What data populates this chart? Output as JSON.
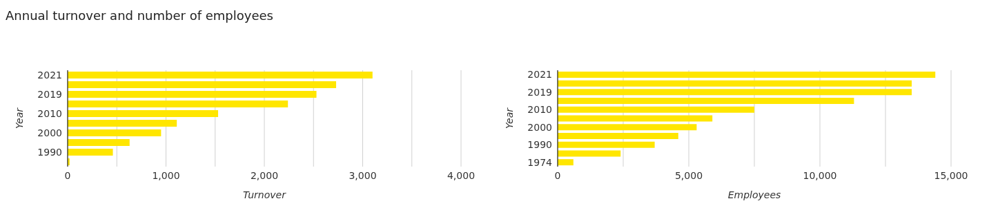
{
  "chart_data": [
    {
      "type": "bar",
      "orientation": "horizontal",
      "title": "Annual turnover and number of employees",
      "xlabel": "Turnover",
      "ylabel": "Year",
      "categories": [
        "2021",
        null,
        "2019",
        null,
        "2010",
        null,
        "2000",
        null,
        "1990",
        null
      ],
      "values": [
        3100,
        2730,
        2530,
        2240,
        1530,
        1110,
        950,
        630,
        460,
        20
      ],
      "color": "#ffe600",
      "xlim": [
        0,
        4000
      ],
      "xticks": [
        0,
        {
          "value": 500,
          "label": null
        },
        {
          "value": 1000,
          "label": "1,000"
        },
        {
          "value": 1500,
          "label": null
        },
        {
          "value": 2000,
          "label": "2,000"
        },
        {
          "value": 2500,
          "label": null
        },
        {
          "value": 3000,
          "label": "3,000"
        },
        {
          "value": 3500,
          "label": null
        },
        {
          "value": 4000,
          "label": "4,000"
        }
      ],
      "grid": "x"
    },
    {
      "type": "bar",
      "orientation": "horizontal",
      "xlabel": "Employees",
      "ylabel": "Year",
      "categories": [
        "2021",
        null,
        "2019",
        null,
        "2010",
        null,
        "2000",
        null,
        "1990",
        null,
        "1974"
      ],
      "values": [
        14400,
        13500,
        13500,
        11300,
        7500,
        5900,
        5300,
        4600,
        3700,
        2400,
        600
      ],
      "color": "#ffe600",
      "xlim": [
        0,
        15000
      ],
      "xticks": [
        0,
        {
          "value": 2500,
          "label": null
        },
        {
          "value": 5000,
          "label": "5,000"
        },
        {
          "value": 7500,
          "label": null
        },
        {
          "value": 10000,
          "label": "10,000"
        },
        {
          "value": 12500,
          "label": null
        },
        {
          "value": 15000,
          "label": "15,000"
        }
      ],
      "grid": "x"
    }
  ]
}
